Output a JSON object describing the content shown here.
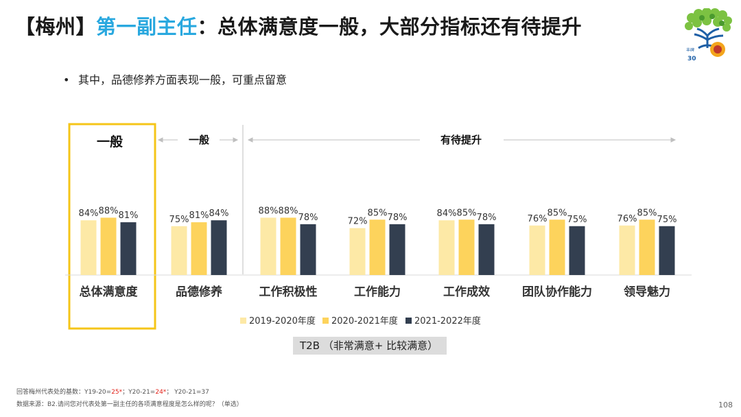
{
  "title": {
    "region": "【梅州】",
    "role": "第一副主任",
    "summary": "：总体满意度一般，大部分指标还有待提升"
  },
  "bullet": {
    "mark": "•",
    "text": "其中，品德修养方面表现一般，可重点留意"
  },
  "chart_data": {
    "type": "bar",
    "categories": [
      "总体满意度",
      "品德修养",
      "工作积极性",
      "工作能力",
      "工作成效",
      "团队协作能力",
      "领导魅力"
    ],
    "series": [
      {
        "name": "2019-2020年度",
        "color": "#fde9a6",
        "values": [
          84,
          75,
          88,
          72,
          84,
          76,
          76
        ],
        "labels": [
          "84%",
          "75%",
          "88%",
          "72%",
          "84%",
          "76%",
          "76%"
        ]
      },
      {
        "name": "2020-2021年度",
        "color": "#fdd35c",
        "values": [
          88,
          81,
          88,
          85,
          85,
          85,
          85
        ],
        "labels": [
          "88%",
          "81%",
          "88%",
          "85%",
          "85%",
          "85%",
          "85%"
        ]
      },
      {
        "name": "2021-2022年度",
        "color": "#333f50",
        "values": [
          81,
          84,
          78,
          78,
          78,
          75,
          75
        ],
        "labels": [
          "81%",
          "84%",
          "78%",
          "78%",
          "78%",
          "75%",
          "75%"
        ]
      }
    ],
    "ylim": [
      0,
      100
    ],
    "unit": "%",
    "highlight_category": "总体满意度",
    "annotations": [
      {
        "label": "一般",
        "group": "总体满意度"
      },
      {
        "label": "一般",
        "group": "品德修养"
      },
      {
        "label": "有待提升",
        "group": "工作积极性 – 领导魅力"
      }
    ],
    "legend_position": "bottom"
  },
  "metric_note": "T2B （非常满意+ 比较满意）",
  "footnotes": {
    "base_prefix": "回答梅州代表处的基数：Y19-20=",
    "base_y1920": "25*",
    "base_sep1": "；Y20-21=",
    "base_y2021": "24*",
    "base_sep2": "； Y20-21=37",
    "source": "数据来源：B2.请问您对代表处第一副主任的各项满意程度是怎么样的呢？（单选）"
  },
  "page_number": "108",
  "colors": {
    "accent_blue": "#29a8df",
    "highlight_box": "#f5c518",
    "red": "#e2231a"
  },
  "logo": {
    "icon": "tree-emblem-icon"
  }
}
